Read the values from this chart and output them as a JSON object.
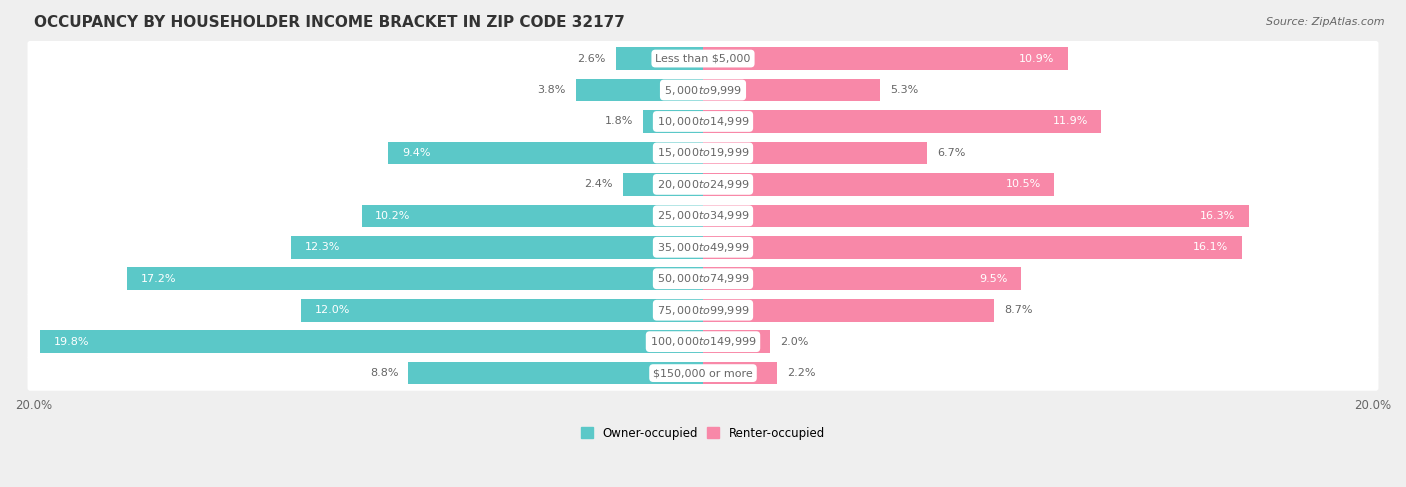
{
  "title": "OCCUPANCY BY HOUSEHOLDER INCOME BRACKET IN ZIP CODE 32177",
  "source": "Source: ZipAtlas.com",
  "categories": [
    "Less than $5,000",
    "$5,000 to $9,999",
    "$10,000 to $14,999",
    "$15,000 to $19,999",
    "$20,000 to $24,999",
    "$25,000 to $34,999",
    "$35,000 to $49,999",
    "$50,000 to $74,999",
    "$75,000 to $99,999",
    "$100,000 to $149,999",
    "$150,000 or more"
  ],
  "owner_values": [
    2.6,
    3.8,
    1.8,
    9.4,
    2.4,
    10.2,
    12.3,
    17.2,
    12.0,
    19.8,
    8.8
  ],
  "renter_values": [
    10.9,
    5.3,
    11.9,
    6.7,
    10.5,
    16.3,
    16.1,
    9.5,
    8.7,
    2.0,
    2.2
  ],
  "owner_color": "#5BC8C8",
  "renter_color": "#F888A8",
  "background_color": "#efefef",
  "bar_background": "#ffffff",
  "text_color": "#666666",
  "label_color_inside": "#ffffff",
  "label_color_outside": "#666666",
  "xlim": 20.0,
  "bar_height": 0.72,
  "legend_labels": [
    "Owner-occupied",
    "Renter-occupied"
  ],
  "title_fontsize": 11,
  "label_fontsize": 8,
  "category_fontsize": 8,
  "axis_fontsize": 8.5,
  "source_fontsize": 8
}
